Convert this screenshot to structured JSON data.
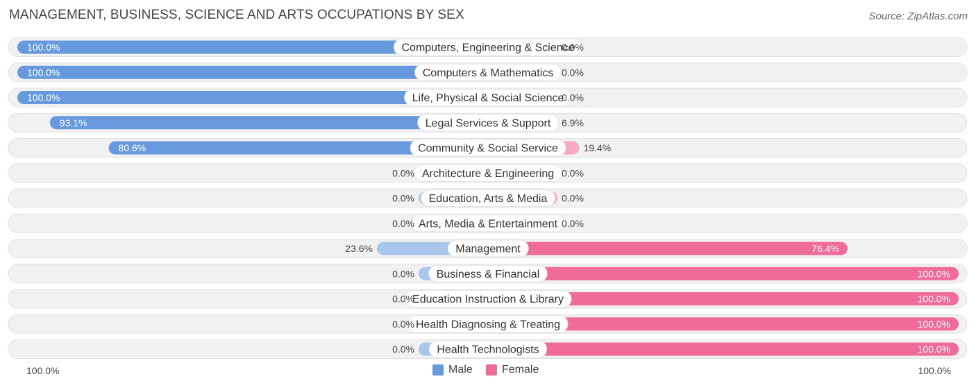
{
  "title": "MANAGEMENT, BUSINESS, SCIENCE AND ARTS OCCUPATIONS BY SEX",
  "source": "Source: ZipAtlas.com",
  "legend": {
    "male": "Male",
    "female": "Female"
  },
  "axis": {
    "left_label": "100.0%",
    "right_label": "100.0%"
  },
  "colors": {
    "male": "#6699dd",
    "male_light": "#a9c6ec",
    "female": "#f06b99",
    "female_light": "#f7a9c4",
    "track": "#f1f1f1"
  },
  "chart_data": {
    "type": "bar",
    "orientation": "horizontal-diverging",
    "xlim": [
      -100,
      100
    ],
    "categories": [
      "Computers, Engineering & Science",
      "Computers & Mathematics",
      "Life, Physical & Social Science",
      "Legal Services & Support",
      "Community & Social Service",
      "Architecture & Engineering",
      "Education, Arts & Media",
      "Arts, Media & Entertainment",
      "Management",
      "Business & Financial",
      "Education Instruction & Library",
      "Health Diagnosing & Treating",
      "Health Technologists"
    ],
    "series": [
      {
        "name": "Male",
        "values": [
          100.0,
          100.0,
          100.0,
          93.1,
          80.6,
          0.0,
          0.0,
          0.0,
          23.6,
          0.0,
          0.0,
          0.0,
          0.0
        ],
        "labels": [
          "100.0%",
          "100.0%",
          "100.0%",
          "93.1%",
          "80.6%",
          "0.0%",
          "0.0%",
          "0.0%",
          "23.6%",
          "0.0%",
          "0.0%",
          "0.0%",
          "0.0%"
        ]
      },
      {
        "name": "Female",
        "values": [
          0.0,
          0.0,
          0.0,
          6.9,
          19.4,
          0.0,
          0.0,
          0.0,
          76.4,
          100.0,
          100.0,
          100.0,
          100.0
        ],
        "labels": [
          "0.0%",
          "0.0%",
          "0.0%",
          "6.9%",
          "19.4%",
          "0.0%",
          "0.0%",
          "0.0%",
          "76.4%",
          "100.0%",
          "100.0%",
          "100.0%",
          "100.0%"
        ]
      }
    ]
  }
}
